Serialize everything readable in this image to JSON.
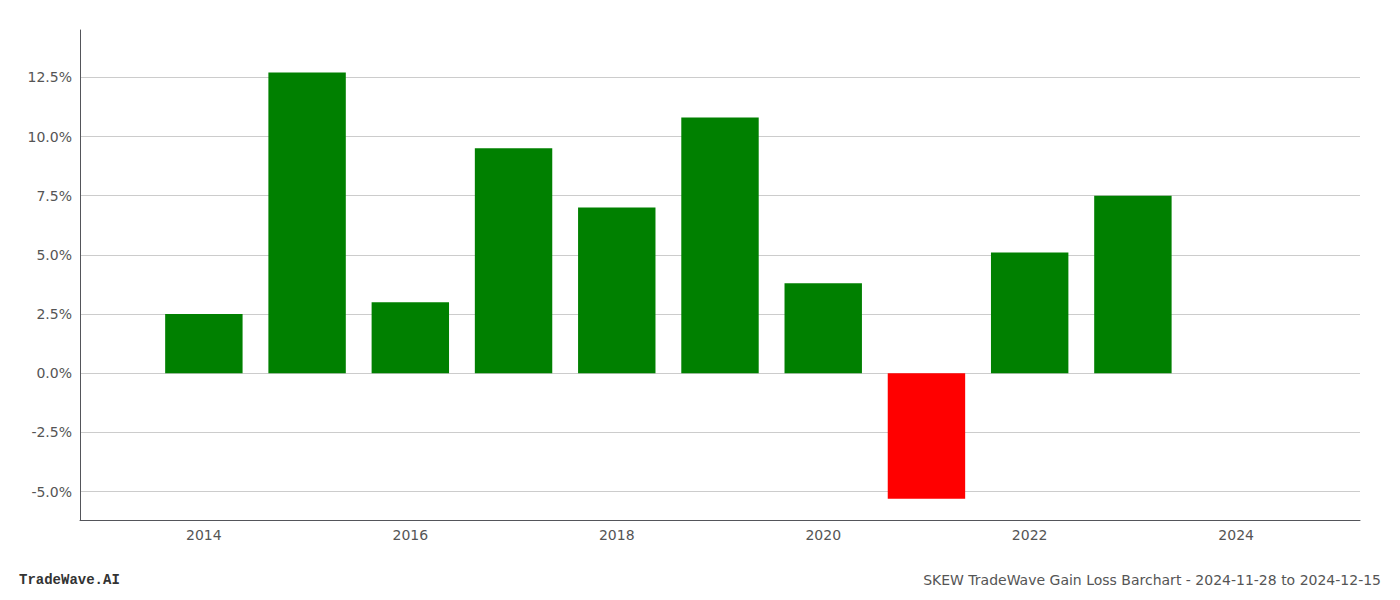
{
  "chart_data": {
    "type": "bar",
    "title": "SKEW TradeWave Gain Loss Barchart - 2024-11-28 to 2024-12-15",
    "annotations": [
      "TradeWave.AI"
    ],
    "x": [
      2014,
      2015,
      2016,
      2017,
      2018,
      2019,
      2020,
      2021,
      2022,
      2023
    ],
    "values": [
      0.025,
      0.127,
      0.03,
      0.095,
      0.07,
      0.108,
      0.038,
      -0.053,
      0.051,
      0.075
    ],
    "colors": [
      "#008000",
      "#008000",
      "#008000",
      "#008000",
      "#008000",
      "#008000",
      "#008000",
      "#ff0000",
      "#008000",
      "#008000"
    ],
    "xlim": [
      2012.8,
      2025.2
    ],
    "xticks": [
      2014,
      2016,
      2018,
      2020,
      2022,
      2024
    ],
    "ylim": [
      -0.062,
      0.145
    ],
    "yticks": [
      {
        "value": -0.05,
        "label": "-5.0%"
      },
      {
        "value": -0.025,
        "label": "-2.5%"
      },
      {
        "value": 0,
        "label": "0.0%"
      },
      {
        "value": 0.025,
        "label": "2.5%"
      },
      {
        "value": 0.05,
        "label": "5.0%"
      },
      {
        "value": 0.075,
        "label": "7.5%"
      },
      {
        "value": 0.1,
        "label": "10.0%"
      },
      {
        "value": 0.125,
        "label": "12.5%"
      }
    ],
    "grid": true
  }
}
